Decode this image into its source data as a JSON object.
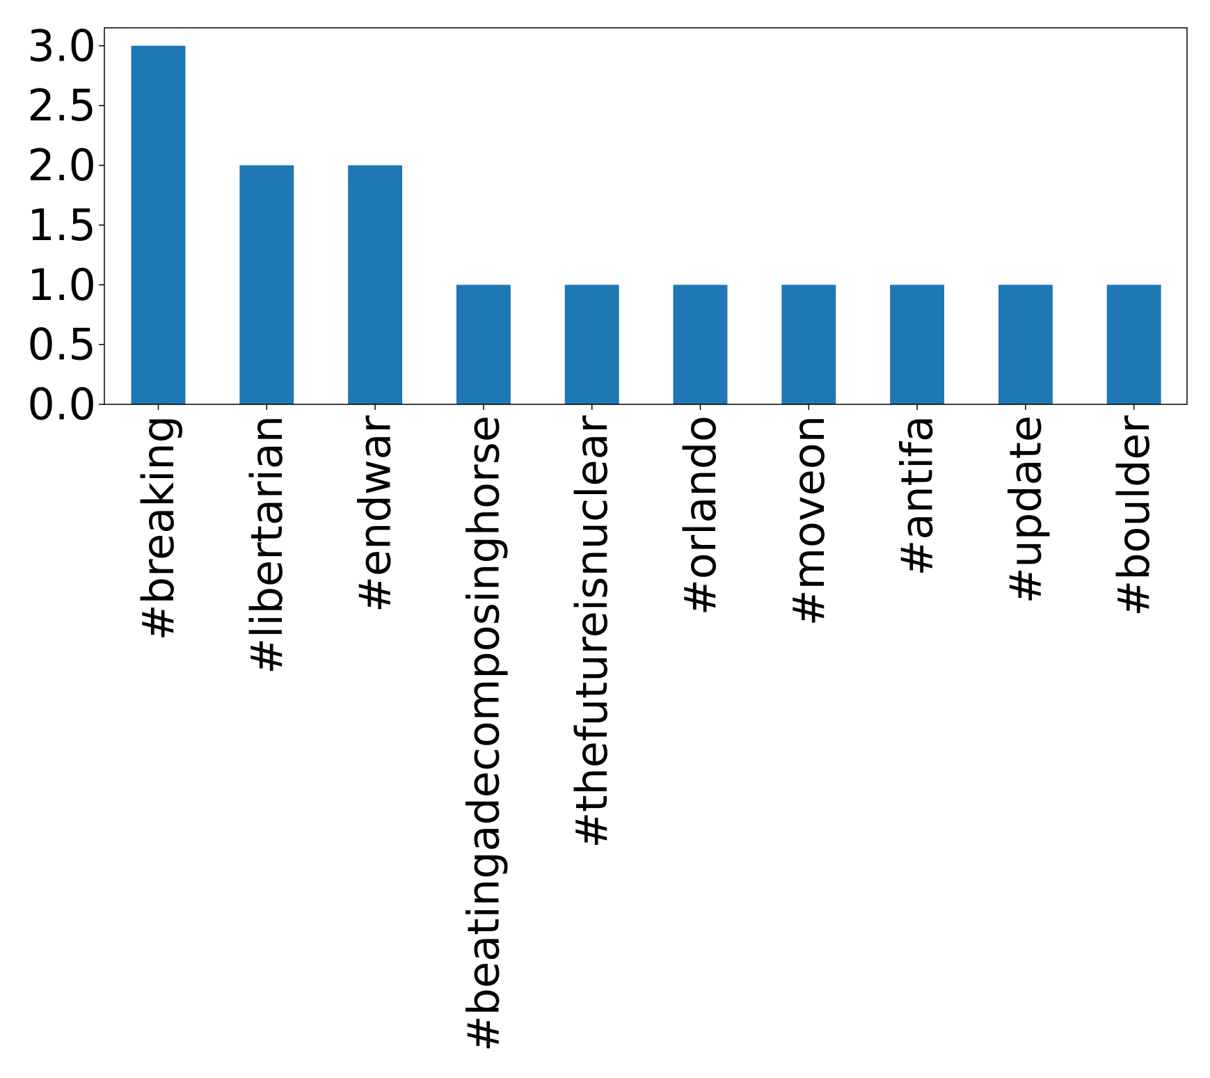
{
  "chart_data": {
    "type": "bar",
    "title": "",
    "xlabel": "",
    "ylabel": "",
    "categories": [
      "#breaking",
      "#libertarian",
      "#endwar",
      "#beatingadecomposinghorse",
      "#thefutureisnuclear",
      "#orlando",
      "#moveon",
      "#antifa",
      "#update",
      "#boulder"
    ],
    "values": [
      3,
      2,
      2,
      1,
      1,
      1,
      1,
      1,
      1,
      1
    ],
    "ylim": [
      0,
      3.15
    ],
    "yticks": [
      "0.0",
      "0.5",
      "1.0",
      "1.5",
      "2.0",
      "2.5",
      "3.0"
    ],
    "bar_color": "#1f77b4",
    "grid": false,
    "legend": "none"
  }
}
